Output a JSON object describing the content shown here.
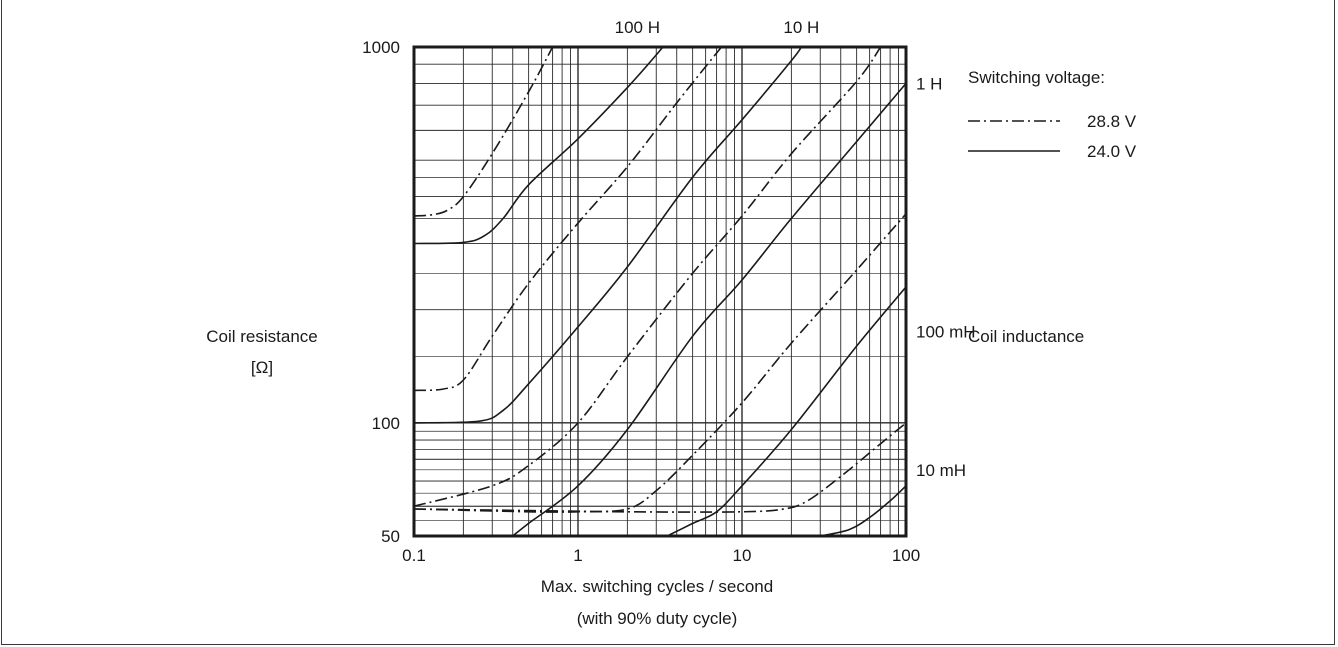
{
  "chart_data": {
    "type": "line",
    "x_scale": "log",
    "y_scale": "log",
    "xlim": [
      0.1,
      100
    ],
    "ylim": [
      50,
      1000
    ],
    "xlabel_line1": "Max. switching cycles / second",
    "xlabel_line2": "(with 90% duty cycle)",
    "ylabel_line1": "Coil resistance",
    "ylabel_line2": "[Ω]",
    "right_axis_label": "Coil inductance",
    "x_ticks": [
      {
        "value": 0.1,
        "label": "0.1"
      },
      {
        "value": 1,
        "label": "1"
      },
      {
        "value": 10,
        "label": "10"
      },
      {
        "value": 100,
        "label": "100"
      }
    ],
    "y_ticks": [
      {
        "value": 50,
        "label": "50"
      },
      {
        "value": 100,
        "label": "100"
      },
      {
        "value": 1000,
        "label": "1000"
      }
    ],
    "inductance_labels": [
      {
        "label": "100 H",
        "x": 2.3,
        "y": 1000
      },
      {
        "label": "10 H",
        "x": 23,
        "y": 1000
      },
      {
        "label": "1 H",
        "x": 100,
        "y": 800
      },
      {
        "label": "100 mH",
        "x": 100,
        "y": 175
      },
      {
        "label": "10 mH",
        "x": 100,
        "y": 75
      }
    ],
    "legend": {
      "title": "Switching voltage:",
      "position": "top-right",
      "entries": [
        {
          "label": "28.8 V",
          "style": "dash-dot"
        },
        {
          "label": "24.0 V",
          "style": "solid"
        }
      ]
    },
    "grid": true,
    "series": [
      {
        "inductance": "100 H",
        "style": "dash-dot",
        "points": [
          [
            0.1,
            355
          ],
          [
            0.13,
            358
          ],
          [
            0.16,
            368
          ],
          [
            0.2,
            400
          ],
          [
            0.3,
            520
          ],
          [
            0.5,
            760
          ],
          [
            0.7,
            1000
          ]
        ]
      },
      {
        "inductance": "100 H",
        "style": "solid",
        "points": [
          [
            0.1,
            300
          ],
          [
            0.2,
            302
          ],
          [
            0.27,
            315
          ],
          [
            0.35,
            350
          ],
          [
            0.5,
            430
          ],
          [
            1,
            570
          ],
          [
            2,
            780
          ],
          [
            3.3,
            1000
          ]
        ]
      },
      {
        "inductance": "10 H",
        "style": "dash-dot",
        "points": [
          [
            0.1,
            122
          ],
          [
            0.15,
            123
          ],
          [
            0.2,
            130
          ],
          [
            0.3,
            170
          ],
          [
            0.5,
            235
          ],
          [
            1,
            340
          ],
          [
            2,
            480
          ],
          [
            4,
            710
          ],
          [
            7.5,
            1000
          ]
        ]
      },
      {
        "inductance": "10 H",
        "style": "solid",
        "points": [
          [
            0.1,
            100
          ],
          [
            0.25,
            101
          ],
          [
            0.35,
            108
          ],
          [
            0.5,
            127
          ],
          [
            1,
            180
          ],
          [
            2,
            260
          ],
          [
            5,
            450
          ],
          [
            10,
            640
          ],
          [
            20,
            920
          ],
          [
            23,
            1000
          ]
        ]
      },
      {
        "inductance": "1 H",
        "style": "dash-dot",
        "points": [
          [
            0.1,
            60
          ],
          [
            0.3,
            68
          ],
          [
            0.5,
            77
          ],
          [
            1,
            100
          ],
          [
            2,
            150
          ],
          [
            5,
            250
          ],
          [
            10,
            355
          ],
          [
            20,
            520
          ],
          [
            50,
            810
          ],
          [
            70,
            1000
          ]
        ]
      },
      {
        "inductance": "1 H",
        "style": "solid",
        "points": [
          [
            0.4,
            50
          ],
          [
            0.5,
            54
          ],
          [
            1,
            68
          ],
          [
            2,
            96
          ],
          [
            5,
            170
          ],
          [
            10,
            240
          ],
          [
            20,
            350
          ],
          [
            50,
            560
          ],
          [
            100,
            800
          ]
        ]
      },
      {
        "inductance": "100 mH",
        "style": "dash-dot",
        "points": [
          [
            0.1,
            59
          ],
          [
            0.5,
            58
          ],
          [
            1,
            58
          ],
          [
            2,
            59
          ],
          [
            3,
            66
          ],
          [
            5,
            82
          ],
          [
            10,
            113
          ],
          [
            20,
            163
          ],
          [
            50,
            255
          ],
          [
            100,
            360
          ]
        ]
      },
      {
        "inductance": "100 mH",
        "style": "solid",
        "points": [
          [
            3.5,
            50
          ],
          [
            5,
            54
          ],
          [
            7,
            58
          ],
          [
            10,
            68
          ],
          [
            20,
            96
          ],
          [
            50,
            160
          ],
          [
            100,
            230
          ]
        ]
      },
      {
        "inductance": "10 mH",
        "style": "dash-dot",
        "points": [
          [
            0.1,
            59
          ],
          [
            2,
            58
          ],
          [
            10,
            58
          ],
          [
            18,
            59
          ],
          [
            25,
            62
          ],
          [
            40,
            72
          ],
          [
            70,
            88
          ],
          [
            100,
            100
          ]
        ]
      },
      {
        "inductance": "10 mH",
        "style": "solid",
        "points": [
          [
            30,
            50
          ],
          [
            45,
            52
          ],
          [
            60,
            56
          ],
          [
            80,
            62
          ],
          [
            100,
            68
          ]
        ]
      }
    ]
  }
}
